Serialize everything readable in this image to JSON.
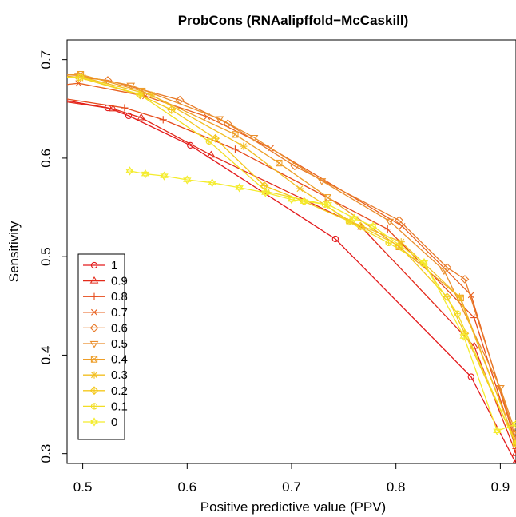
{
  "chart_data": {
    "type": "line",
    "title": "ProbCons (RNAalipffold−McCaskill)",
    "xlabel": "Positive predictive value (PPV)",
    "ylabel": "Sensitivity",
    "xlim": [
      0.485,
      0.915
    ],
    "ylim": [
      0.29,
      0.72
    ],
    "xticks": [
      0.5,
      0.6,
      0.7,
      0.8,
      0.9
    ],
    "xtick_labels": [
      "0.5",
      "0.6",
      "0.7",
      "0.8",
      "0.9"
    ],
    "yticks": [
      0.3,
      0.4,
      0.5,
      0.6,
      0.7
    ],
    "ytick_labels": [
      "0.3",
      "0.4",
      "0.5",
      "0.6",
      "0.7"
    ],
    "grid": false,
    "legend_position": "bottom-left",
    "series": [
      {
        "name": "1",
        "color": "#e31a1c",
        "marker": "circle",
        "x": [
          0.46,
          0.524,
          0.544,
          0.603,
          0.742,
          0.872,
          0.915
        ],
        "y": [
          0.663,
          0.651,
          0.643,
          0.613,
          0.518,
          0.378,
          0.29
        ]
      },
      {
        "name": "0.9",
        "color": "#e32a1a",
        "marker": "triangle",
        "x": [
          0.46,
          0.529,
          0.556,
          0.623,
          0.767,
          0.875,
          0.915
        ],
        "y": [
          0.661,
          0.65,
          0.641,
          0.603,
          0.53,
          0.409,
          0.3
        ]
      },
      {
        "name": "0.8",
        "color": "#e64a1a",
        "marker": "plus",
        "x": [
          0.46,
          0.54,
          0.577,
          0.646,
          0.792,
          0.875,
          0.915
        ],
        "y": [
          0.664,
          0.651,
          0.639,
          0.609,
          0.528,
          0.438,
          0.305
        ]
      },
      {
        "name": "0.7",
        "color": "#e8601e",
        "marker": "x",
        "x": [
          0.46,
          0.496,
          0.56,
          0.619,
          0.68,
          0.806,
          0.872,
          0.915
        ],
        "y": [
          0.672,
          0.676,
          0.663,
          0.642,
          0.61,
          0.531,
          0.461,
          0.31
        ]
      },
      {
        "name": "0.6",
        "color": "#e87a28",
        "marker": "diamond",
        "x": [
          0.46,
          0.524,
          0.593,
          0.639,
          0.703,
          0.803,
          0.849,
          0.866,
          0.915
        ],
        "y": [
          0.686,
          0.679,
          0.659,
          0.635,
          0.592,
          0.537,
          0.489,
          0.477,
          0.315
        ]
      },
      {
        "name": "0.5",
        "color": "#ea8e2c",
        "marker": "triangle-down",
        "x": [
          0.46,
          0.496,
          0.546,
          0.631,
          0.664,
          0.729,
          0.794,
          0.846,
          0.9,
          0.915
        ],
        "y": [
          0.686,
          0.684,
          0.674,
          0.64,
          0.621,
          0.577,
          0.536,
          0.486,
          0.367,
          0.32
        ]
      },
      {
        "name": "0.4",
        "color": "#ee9e28",
        "marker": "square-x",
        "x": [
          0.46,
          0.498,
          0.557,
          0.646,
          0.688,
          0.735,
          0.803,
          0.862,
          0.915
        ],
        "y": [
          0.686,
          0.685,
          0.668,
          0.624,
          0.595,
          0.56,
          0.51,
          0.458,
          0.31
        ]
      },
      {
        "name": "0.3",
        "color": "#f2bf22",
        "marker": "asterisk",
        "x": [
          0.46,
          0.5,
          0.566,
          0.654,
          0.708,
          0.756,
          0.805,
          0.861,
          0.915
        ],
        "y": [
          0.684,
          0.682,
          0.664,
          0.612,
          0.569,
          0.536,
          0.515,
          0.459,
          0.31
        ]
      },
      {
        "name": "0.2",
        "color": "#f4c81c",
        "marker": "diamond-plus",
        "x": [
          0.46,
          0.496,
          0.555,
          0.585,
          0.627,
          0.674,
          0.712,
          0.766,
          0.803,
          0.849,
          0.866,
          0.915
        ],
        "y": [
          0.683,
          0.682,
          0.664,
          0.649,
          0.62,
          0.572,
          0.556,
          0.531,
          0.511,
          0.459,
          0.422,
          0.31
        ]
      },
      {
        "name": "0.1",
        "color": "#f2de24",
        "marker": "circle-plus",
        "x": [
          0.46,
          0.498,
          0.554,
          0.621,
          0.676,
          0.732,
          0.755,
          0.793,
          0.826,
          0.859,
          0.915
        ],
        "y": [
          0.683,
          0.682,
          0.665,
          0.617,
          0.566,
          0.553,
          0.535,
          0.514,
          0.493,
          0.442,
          0.31
        ]
      },
      {
        "name": "0",
        "color": "#f4ec2c",
        "marker": "star",
        "x": [
          0.545,
          0.56,
          0.578,
          0.6,
          0.624,
          0.65,
          0.675,
          0.7,
          0.712,
          0.735,
          0.76,
          0.778,
          0.827,
          0.865,
          0.897,
          0.915
        ],
        "y": [
          0.587,
          0.584,
          0.582,
          0.578,
          0.575,
          0.57,
          0.565,
          0.558,
          0.556,
          0.553,
          0.539,
          0.531,
          0.494,
          0.419,
          0.323,
          0.33
        ]
      }
    ]
  }
}
